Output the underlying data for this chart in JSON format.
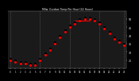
{
  "title": "Milw. Outdoor Temp Per Hour (24 Hours)",
  "hours": [
    0,
    1,
    2,
    3,
    4,
    5,
    6,
    7,
    8,
    9,
    10,
    11,
    12,
    13,
    14,
    15,
    16,
    17,
    18,
    19,
    20,
    21,
    22,
    23
  ],
  "temps_red": [
    25,
    24,
    23,
    23,
    22,
    22,
    25,
    28,
    31,
    35,
    39,
    42,
    45,
    47,
    49,
    50,
    50,
    49,
    47,
    44,
    41,
    38,
    36,
    34
  ],
  "temps_black": [
    26,
    25,
    24,
    24,
    23,
    23,
    26,
    29,
    32,
    36,
    40,
    43,
    46,
    48,
    50,
    51,
    51,
    50,
    48,
    45,
    42,
    39,
    37,
    35
  ],
  "dot_color_main": "#ff0000",
  "dot_color_secondary": "#000000",
  "background": "#000000",
  "plot_bg": "#1a1a1a",
  "grid_color": "#555555",
  "title_color": "#ffffff",
  "tick_color": "#ffffff",
  "ylim_min": 20,
  "ylim_max": 55,
  "yticks": [
    25,
    30,
    35,
    40,
    45,
    50
  ],
  "vlines": [
    0,
    6,
    12,
    18,
    23
  ]
}
